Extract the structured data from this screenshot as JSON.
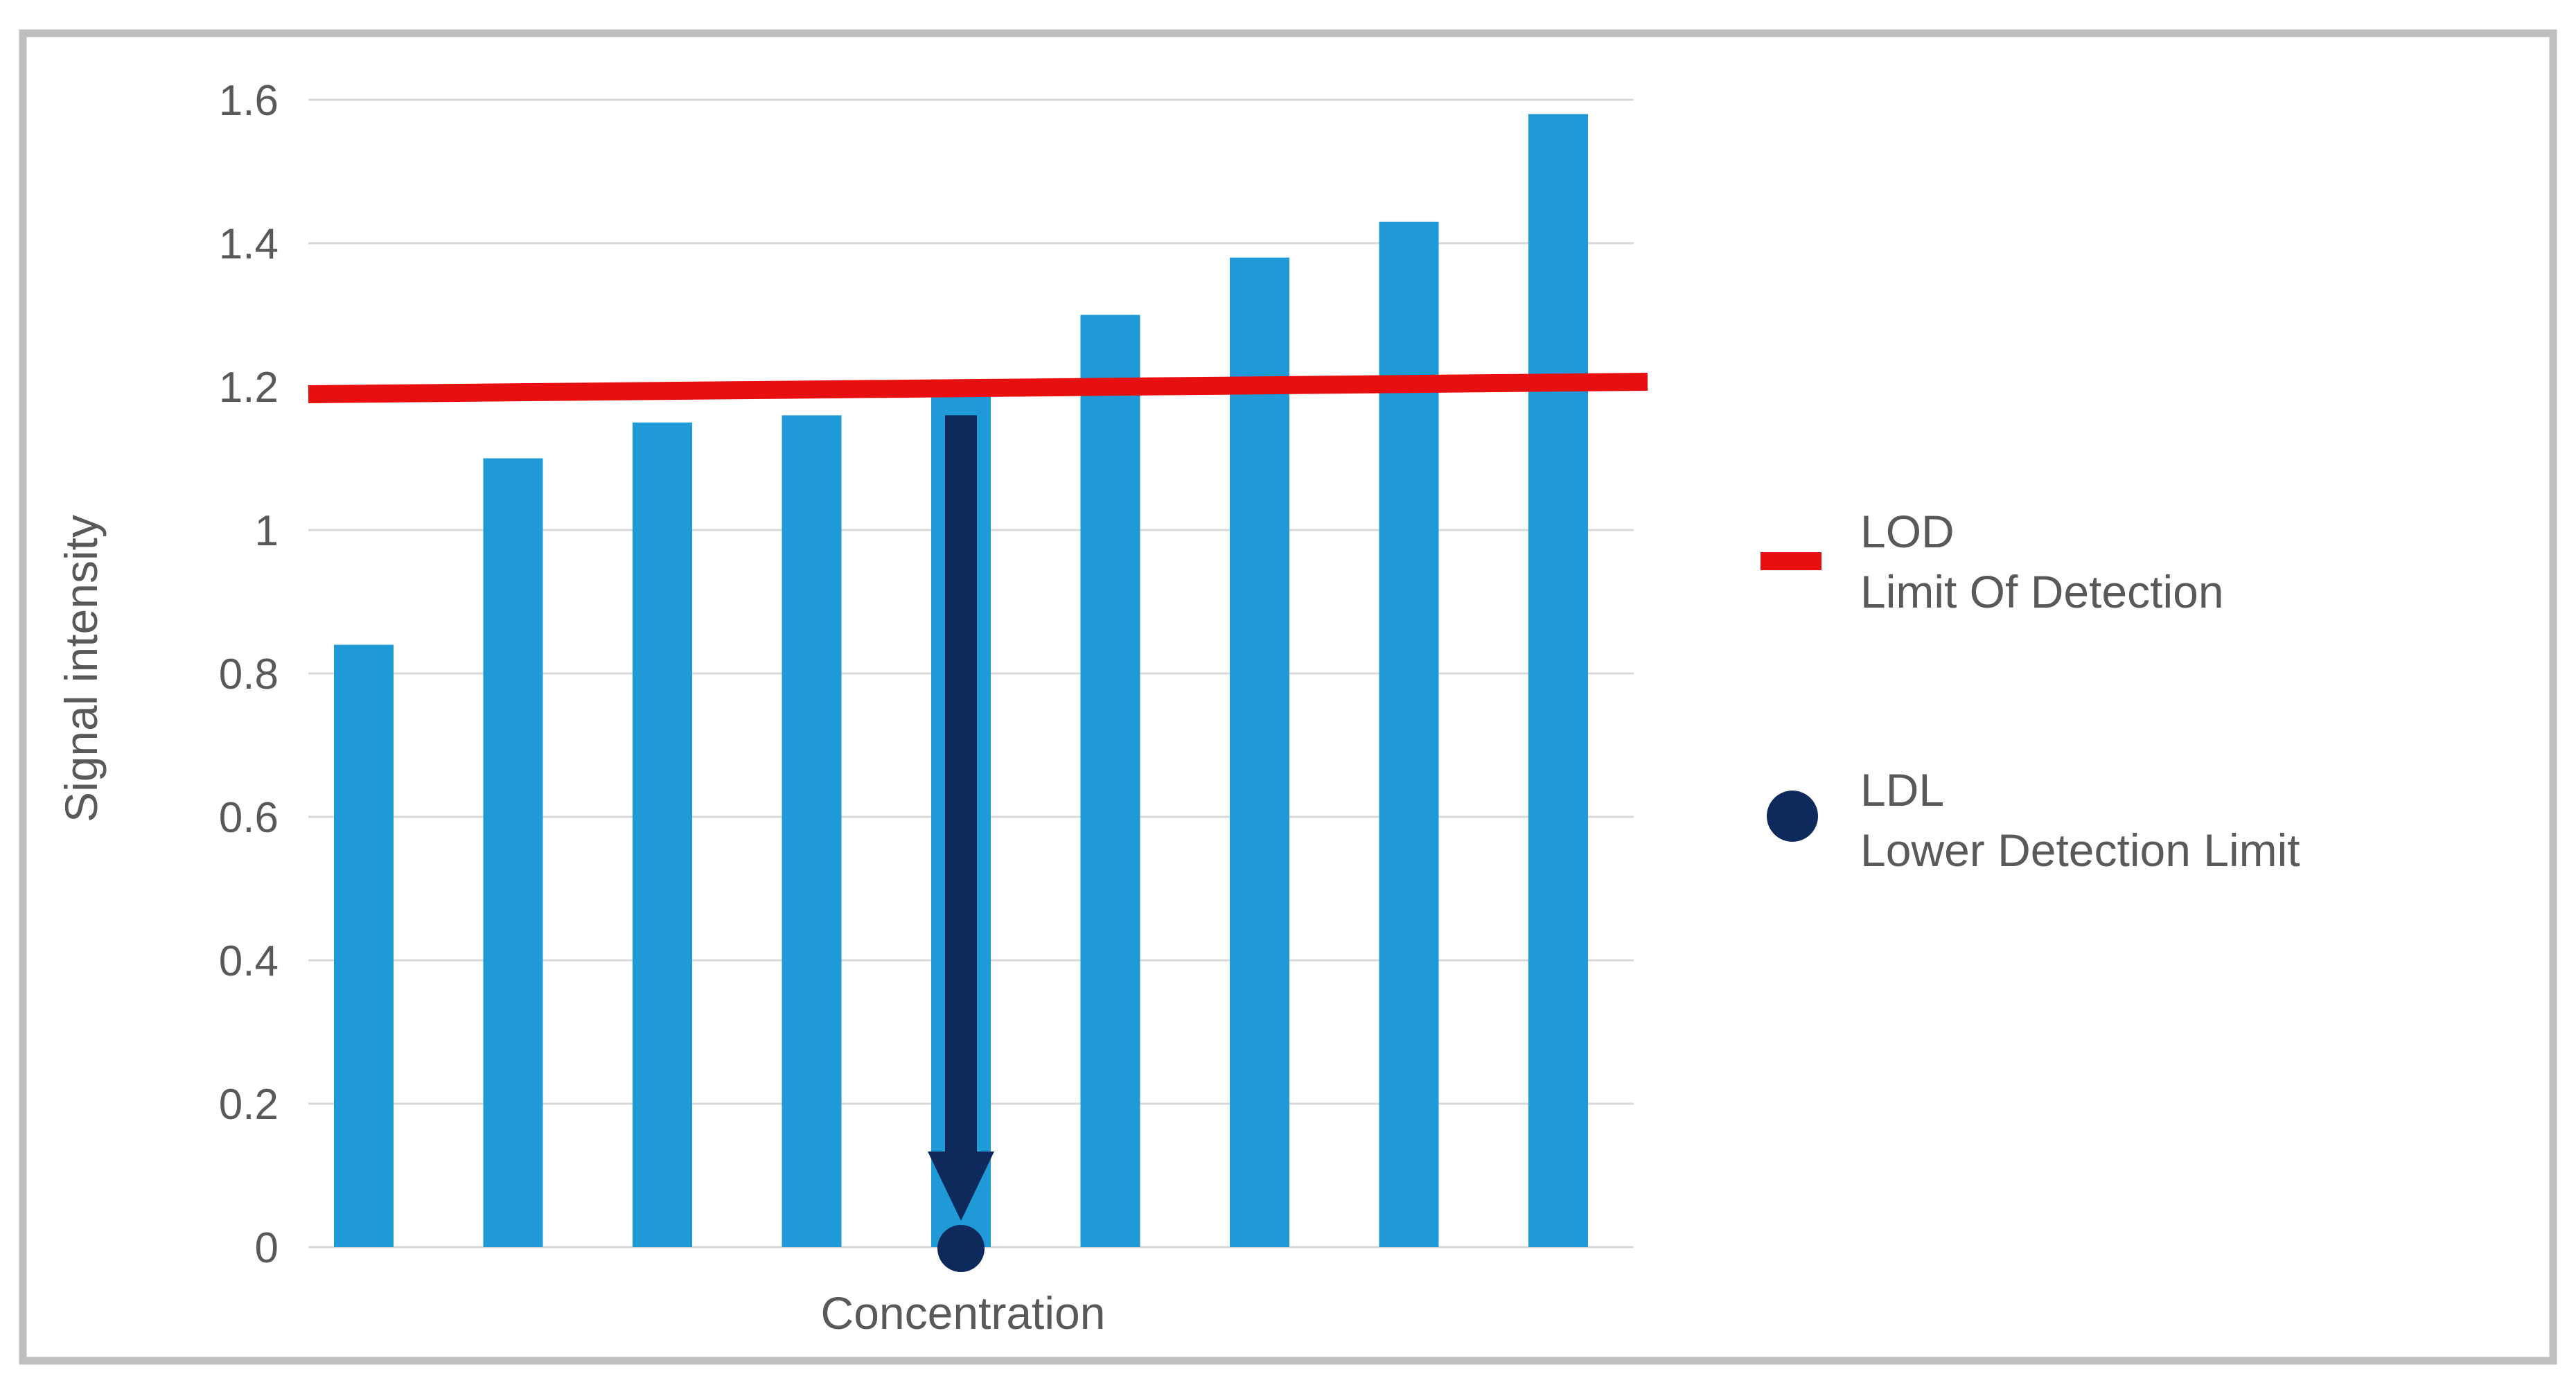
{
  "figure": {
    "background": "#FFFFFF",
    "border_color": "#BFBFBF"
  },
  "chart_data": {
    "type": "bar",
    "title": "",
    "xlabel": "Concentration",
    "ylabel": "Signal intensity",
    "x": [
      1,
      2,
      3,
      4,
      5,
      6,
      7,
      8,
      9
    ],
    "x_tick_labels": [],
    "values": [
      0.84,
      1.1,
      1.15,
      1.16,
      1.21,
      1.3,
      1.38,
      1.43,
      1.58
    ],
    "bar_color": "#1F9AD6",
    "ylim": [
      0,
      1.6
    ],
    "y_tick_values": [
      0,
      0.2,
      0.4,
      0.6,
      0.8,
      1.0,
      1.2,
      1.4,
      1.6
    ],
    "y_ticks": [
      "0",
      "0.2",
      "0.4",
      "0.6",
      "0.8",
      "1",
      "1.2",
      "1.4",
      "1.6"
    ],
    "grid": true,
    "gridline_color": "#D9D9D9",
    "text_color": "#595959",
    "annotations": [
      {
        "id": "lod",
        "kind": "horizontal-line",
        "value": 1.2,
        "color": "#E80F10",
        "label": "LOD",
        "sublabel": "Limit Of Detection"
      },
      {
        "id": "ldl",
        "kind": "down-arrow-to-axis",
        "at_bar": 5,
        "from_value": 1.16,
        "to_value": 0,
        "color": "#0E2A5C",
        "label": "LDL",
        "sublabel": "Lower Detection Limit"
      }
    ],
    "legend": {
      "position": "right",
      "entries": [
        {
          "swatch": "dash",
          "color": "#E80F10",
          "label": "LOD",
          "sublabel": "Limit Of Detection"
        },
        {
          "swatch": "circle",
          "color": "#0E2A5C",
          "label": "LDL",
          "sublabel": "Lower Detection Limit"
        }
      ]
    }
  }
}
